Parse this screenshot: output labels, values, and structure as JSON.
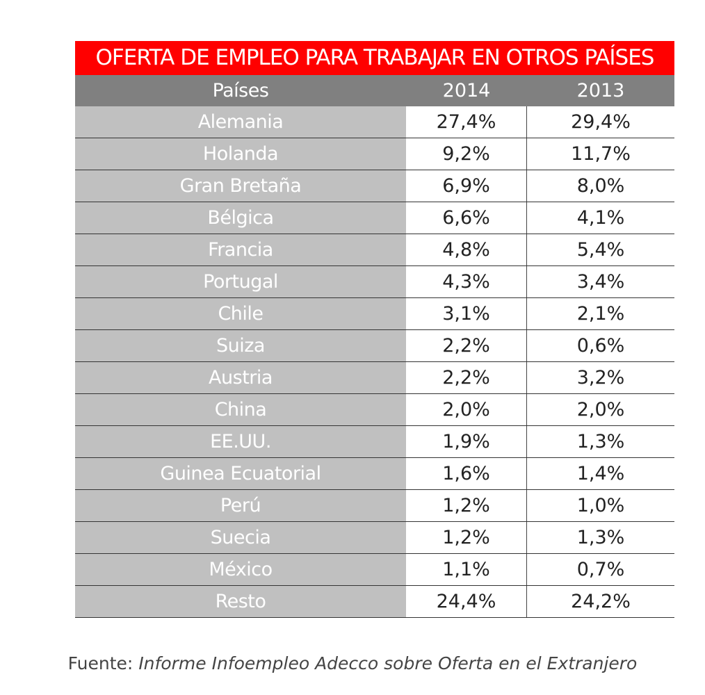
{
  "chart_data": {
    "type": "table",
    "title": "OFERTA DE EMPLEO PARA TRABAJAR EN OTROS PAÍSES",
    "columns": [
      "Países",
      "2014",
      "2013"
    ],
    "rows": [
      [
        "Alemania",
        "27,4%",
        "29,4%"
      ],
      [
        "Holanda",
        "9,2%",
        "11,7%"
      ],
      [
        "Gran Bretaña",
        "6,9%",
        "8,0%"
      ],
      [
        "Bélgica",
        "6,6%",
        "4,1%"
      ],
      [
        "Francia",
        "4,8%",
        "5,4%"
      ],
      [
        "Portugal",
        "4,3%",
        "3,4%"
      ],
      [
        "Chile",
        "3,1%",
        "2,1%"
      ],
      [
        "Suiza",
        "2,2%",
        "0,6%"
      ],
      [
        "Austria",
        "2,2%",
        "3,2%"
      ],
      [
        "China",
        "2,0%",
        "2,0%"
      ],
      [
        "EE.UU.",
        "1,9%",
        "1,3%"
      ],
      [
        "Guinea Ecuatorial",
        "1,6%",
        "1,4%"
      ],
      [
        "Perú",
        "1,2%",
        "1,0%"
      ],
      [
        "Suecia",
        "1,2%",
        "1,3%"
      ],
      [
        "México",
        "1,1%",
        "0,7%"
      ],
      [
        "Resto",
        "24,4%",
        "24,2%"
      ]
    ],
    "colors": {
      "title_bg": "#ff0000",
      "header_bg": "#808080",
      "country_col_bg": "#c0c0c0"
    }
  },
  "source": {
    "label": "Fuente:",
    "text": "Informe Infoempleo Adecco sobre Oferta en el Extranjero"
  }
}
